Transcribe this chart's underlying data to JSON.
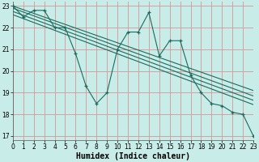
{
  "xlabel": "Humidex (Indice chaleur)",
  "bg_color": "#c8ece8",
  "grid_color": "#d4a0a0",
  "line_color": "#1a6b5e",
  "xlim": [
    0,
    23
  ],
  "ylim": [
    16.8,
    23.2
  ],
  "yticks": [
    17,
    18,
    19,
    20,
    21,
    22,
    23
  ],
  "xticks": [
    0,
    1,
    2,
    3,
    4,
    5,
    6,
    7,
    8,
    9,
    10,
    11,
    12,
    13,
    14,
    15,
    16,
    17,
    18,
    19,
    20,
    21,
    22,
    23
  ],
  "data_x": [
    0,
    1,
    2,
    3,
    4,
    5,
    6,
    7,
    8,
    9,
    10,
    11,
    12,
    13,
    14,
    15,
    16,
    17,
    18,
    19,
    20,
    21,
    22,
    23
  ],
  "data_y": [
    23.0,
    22.5,
    22.8,
    22.8,
    22.0,
    22.0,
    20.8,
    19.3,
    18.5,
    19.0,
    21.0,
    21.8,
    21.8,
    22.7,
    20.7,
    21.4,
    21.4,
    19.8,
    19.0,
    18.5,
    18.4,
    18.1,
    18.0,
    17.0
  ],
  "trend_lines": [
    {
      "x0": 0,
      "y0": 23.0,
      "x1": 23,
      "y1": 19.1
    },
    {
      "x0": 0,
      "y0": 22.9,
      "x1": 23,
      "y1": 18.85
    },
    {
      "x0": 0,
      "y0": 22.75,
      "x1": 23,
      "y1": 18.65
    },
    {
      "x0": 0,
      "y0": 22.6,
      "x1": 23,
      "y1": 18.45
    }
  ],
  "tick_fontsize": 5.5,
  "xlabel_fontsize": 7
}
